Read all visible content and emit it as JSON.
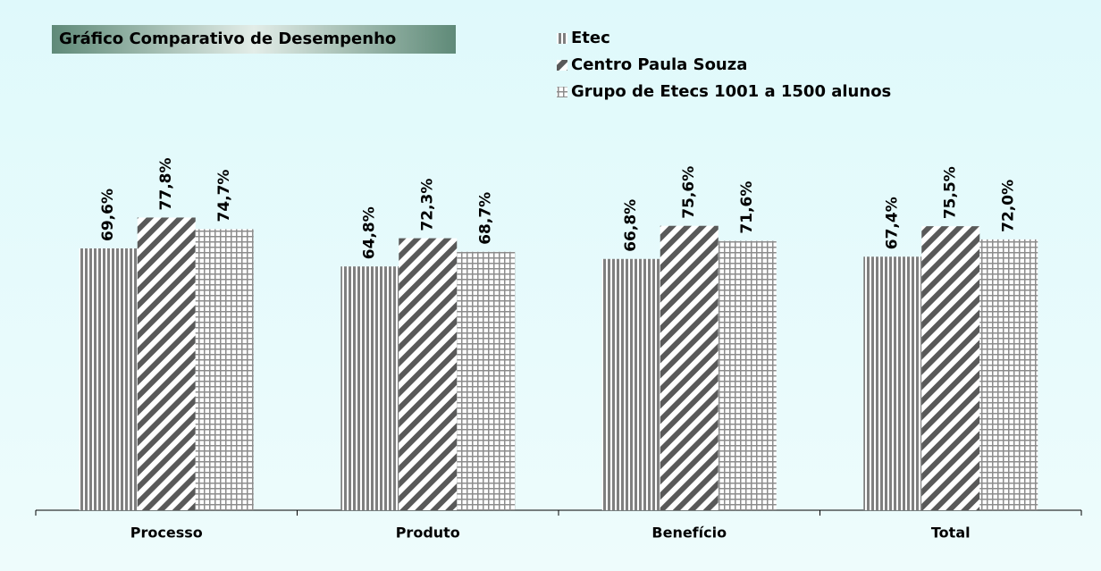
{
  "chart_data": {
    "type": "bar",
    "title": "Gráfico Comparativo de Desempenho",
    "categories": [
      "Processo",
      "Produto",
      "Benefício",
      "Total"
    ],
    "series": [
      {
        "name": "Etec",
        "color": "#7f7f7f",
        "values": [
          69.6,
          64.8,
          66.8,
          67.4
        ],
        "value_labels": [
          "69,6%",
          "64,8%",
          "66,8%",
          "67,4%"
        ]
      },
      {
        "name": "Centro Paula Souza",
        "color": "#595959",
        "values": [
          77.8,
          72.3,
          75.6,
          75.5
        ],
        "value_labels": [
          "77,8%",
          "72,3%",
          "75,6%",
          "75,5%"
        ]
      },
      {
        "name": "Grupo de Etecs 1001 a 1500 alunos",
        "color": "#8c8c8c",
        "values": [
          74.7,
          68.7,
          71.6,
          72.0
        ],
        "value_labels": [
          "74,7%",
          "68,7%",
          "71,6%",
          "72,0%"
        ]
      }
    ],
    "ylim": [
      0,
      100
    ]
  }
}
